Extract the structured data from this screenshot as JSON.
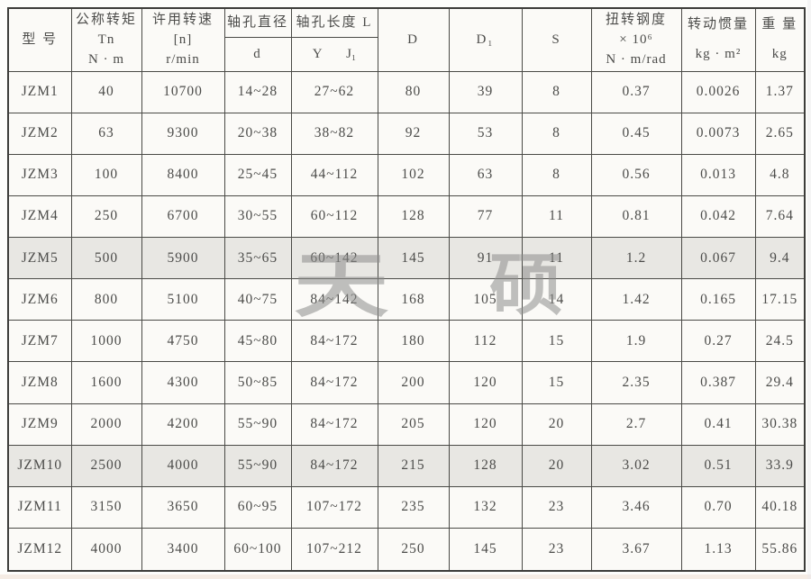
{
  "watermark": {
    "chars": [
      "天",
      "硕"
    ],
    "color": "#8e8e8c"
  },
  "table": {
    "border_color": "#4a4a46",
    "row_shade_color": "#e8e7e3",
    "header": {
      "model": "型  号",
      "nominal_torque": [
        "公称转矩",
        "Tn",
        "N · m"
      ],
      "allowable_speed": [
        "许用转速",
        "[n]",
        "r/min"
      ],
      "bore_diameter": "轴孔直径",
      "bore_diameter_sub": "d",
      "bore_length": "轴孔长度 L",
      "bore_length_sub_y": "Y",
      "bore_length_sub_j1": "J₁",
      "D": "D",
      "D1": "D₁",
      "S": "S",
      "torsional_stiffness": [
        "扭转钢度",
        "× 10⁶",
        "N · m/rad"
      ],
      "moment_of_inertia": [
        "转动惯量",
        "kg · m²"
      ],
      "weight": [
        "重  量",
        "kg"
      ]
    },
    "rows": [
      {
        "shaded": false,
        "cells": [
          "JZM1",
          "40",
          "10700",
          "14~28",
          "27~62",
          "80",
          "39",
          "8",
          "0.37",
          "0.0026",
          "1.37"
        ]
      },
      {
        "shaded": false,
        "cells": [
          "JZM2",
          "63",
          "9300",
          "20~38",
          "38~82",
          "92",
          "53",
          "8",
          "0.45",
          "0.0073",
          "2.65"
        ]
      },
      {
        "shaded": false,
        "cells": [
          "JZM3",
          "100",
          "8400",
          "25~45",
          "44~112",
          "102",
          "63",
          "8",
          "0.56",
          "0.013",
          "4.8"
        ]
      },
      {
        "shaded": false,
        "cells": [
          "JZM4",
          "250",
          "6700",
          "30~55",
          "60~112",
          "128",
          "77",
          "11",
          "0.81",
          "0.042",
          "7.64"
        ]
      },
      {
        "shaded": true,
        "cells": [
          "JZM5",
          "500",
          "5900",
          "35~65",
          "60~142",
          "145",
          "91",
          "11",
          "1.2",
          "0.067",
          "9.4"
        ]
      },
      {
        "shaded": false,
        "cells": [
          "JZM6",
          "800",
          "5100",
          "40~75",
          "84~142",
          "168",
          "105",
          "14",
          "1.42",
          "0.165",
          "17.15"
        ]
      },
      {
        "shaded": false,
        "cells": [
          "JZM7",
          "1000",
          "4750",
          "45~80",
          "84~172",
          "180",
          "112",
          "15",
          "1.9",
          "0.27",
          "24.5"
        ]
      },
      {
        "shaded": false,
        "cells": [
          "JZM8",
          "1600",
          "4300",
          "50~85",
          "84~172",
          "200",
          "120",
          "15",
          "2.35",
          "0.387",
          "29.4"
        ]
      },
      {
        "shaded": false,
        "cells": [
          "JZM9",
          "2000",
          "4200",
          "55~90",
          "84~172",
          "205",
          "120",
          "20",
          "2.7",
          "0.41",
          "30.38"
        ]
      },
      {
        "shaded": true,
        "cells": [
          "JZM10",
          "2500",
          "4000",
          "55~90",
          "84~172",
          "215",
          "128",
          "20",
          "3.02",
          "0.51",
          "33.9"
        ]
      },
      {
        "shaded": false,
        "cells": [
          "JZM11",
          "3150",
          "3650",
          "60~95",
          "107~172",
          "235",
          "132",
          "23",
          "3.46",
          "0.70",
          "40.18"
        ]
      },
      {
        "shaded": false,
        "cells": [
          "JZM12",
          "4000",
          "3400",
          "60~100",
          "107~212",
          "250",
          "145",
          "23",
          "3.67",
          "1.13",
          "55.86"
        ]
      }
    ]
  }
}
